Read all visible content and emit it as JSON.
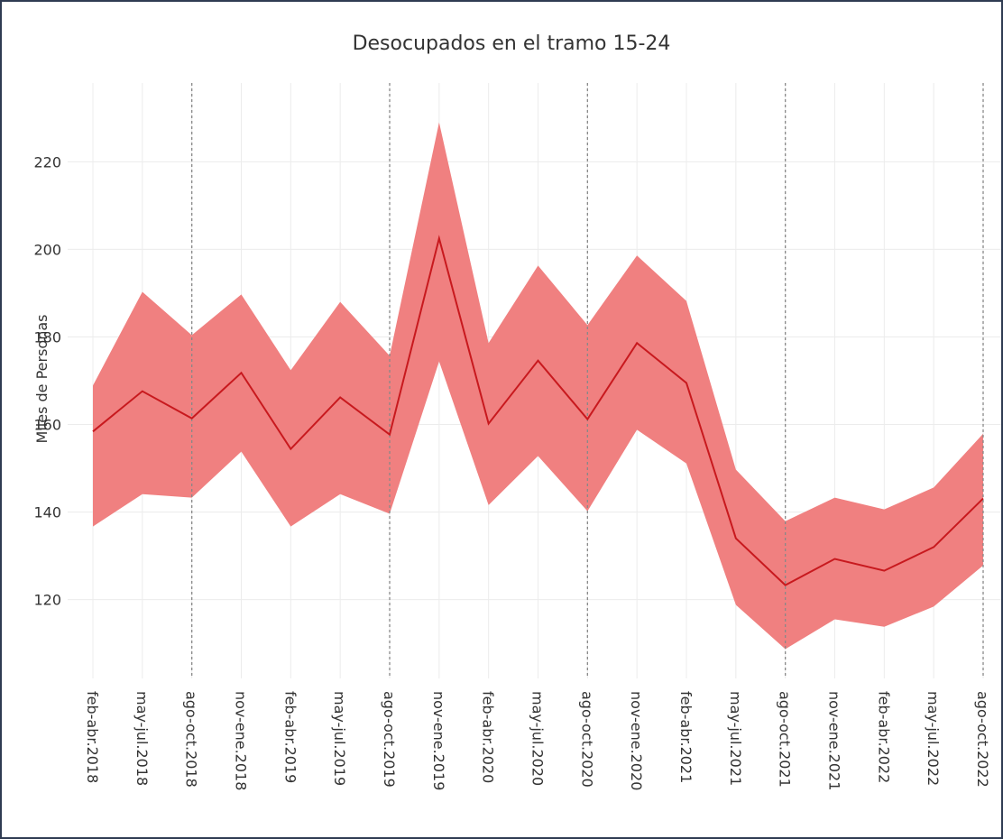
{
  "chart_data": {
    "type": "line_band",
    "title": "Desocupados en el tramo 15-24",
    "y_label": "Miles de Personas",
    "categories": [
      "feb-abr.2018",
      "may-jul.2018",
      "ago-oct.2018",
      "nov-ene.2018",
      "feb-abr.2019",
      "may-jul.2019",
      "ago-oct.2019",
      "nov-ene.2019",
      "feb-abr.2020",
      "may-jul.2020",
      "ago-oct.2020",
      "nov-ene.2020",
      "feb-abr.2021",
      "may-jul.2021",
      "ago-oct.2021",
      "nov-ene.2021",
      "feb-abr.2022",
      "may-jul.2022",
      "ago-oct.2022"
    ],
    "values": [
      158.4,
      167.6,
      161.4,
      171.8,
      154.4,
      166.2,
      157.7,
      202.5,
      160.2,
      174.6,
      161.2,
      178.6,
      169.5,
      134,
      123.3,
      129.3,
      126.6,
      132,
      143.1
    ],
    "upper": [
      168.9,
      190.3,
      180.4,
      189.7,
      172.4,
      188,
      175.7,
      229,
      178.6,
      196.3,
      182.7,
      198.6,
      188.2,
      149.7,
      137.9,
      143.3,
      140.6,
      145.6,
      157.9
    ],
    "lower": [
      136.7,
      144.1,
      143.3,
      153.8,
      136.7,
      144.1,
      139.6,
      174.4,
      141.6,
      152.8,
      140.2,
      158.8,
      151.1,
      118.8,
      108.7,
      115.5,
      113.8,
      118.4,
      127.8
    ],
    "color": "#c8191e",
    "band_color": "#f08080",
    "ylim": [
      102,
      238
    ],
    "yticks": [
      120,
      140,
      160,
      180,
      200,
      220
    ],
    "grid": true,
    "dotted_vlines": [
      2,
      6,
      10,
      14,
      18
    ]
  }
}
